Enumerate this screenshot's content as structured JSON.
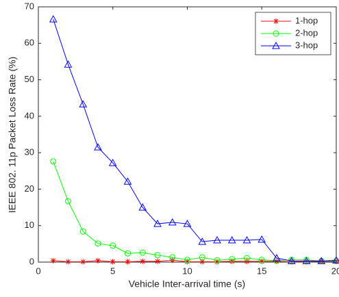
{
  "chart_data": {
    "type": "line",
    "x_label": "Vehicle Inter-arrival time (s)",
    "y_label": "IEEE 802. 11p Packet Loss Rate (%)",
    "x": [
      1,
      2,
      3,
      4,
      5,
      6,
      7,
      8,
      9,
      10,
      11,
      12,
      13,
      14,
      15,
      16,
      17,
      18,
      19,
      20
    ],
    "series": [
      {
        "name": "1-hop",
        "color": "#ff0000",
        "marker": "asterisk",
        "values": [
          0.4,
          0.1,
          0.1,
          0.4,
          0.1,
          0.1,
          0.2,
          0.2,
          0.5,
          0.1,
          0.1,
          0.1,
          0.2,
          0.2,
          0.2,
          0.2,
          0.1,
          0.1,
          0.2,
          0.2
        ]
      },
      {
        "name": "2-hop",
        "color": "#00ff00",
        "marker": "circle",
        "values": [
          27.6,
          16.7,
          8.4,
          5.1,
          4.5,
          2.4,
          2.6,
          1.9,
          1.3,
          0.6,
          1.3,
          0.5,
          0.8,
          1.1,
          0.6,
          0.4,
          0.6,
          0.6,
          0.3,
          0.3
        ]
      },
      {
        "name": "3-hop",
        "color": "#0000ff",
        "marker": "triangle",
        "values": [
          66.6,
          54.2,
          43.3,
          31.5,
          27.2,
          22.1,
          15.0,
          10.5,
          10.9,
          10.5,
          5.6,
          6.0,
          6.0,
          6.0,
          6.2,
          1.1,
          0.3,
          0.3,
          0.3,
          0.5
        ]
      }
    ],
    "xlim": [
      0,
      20
    ],
    "xticks": [
      0,
      5,
      10,
      15,
      20
    ],
    "ylim": [
      0,
      70
    ],
    "yticks": [
      0,
      10,
      20,
      30,
      40,
      50,
      60,
      70
    ],
    "legend": "northeast"
  }
}
